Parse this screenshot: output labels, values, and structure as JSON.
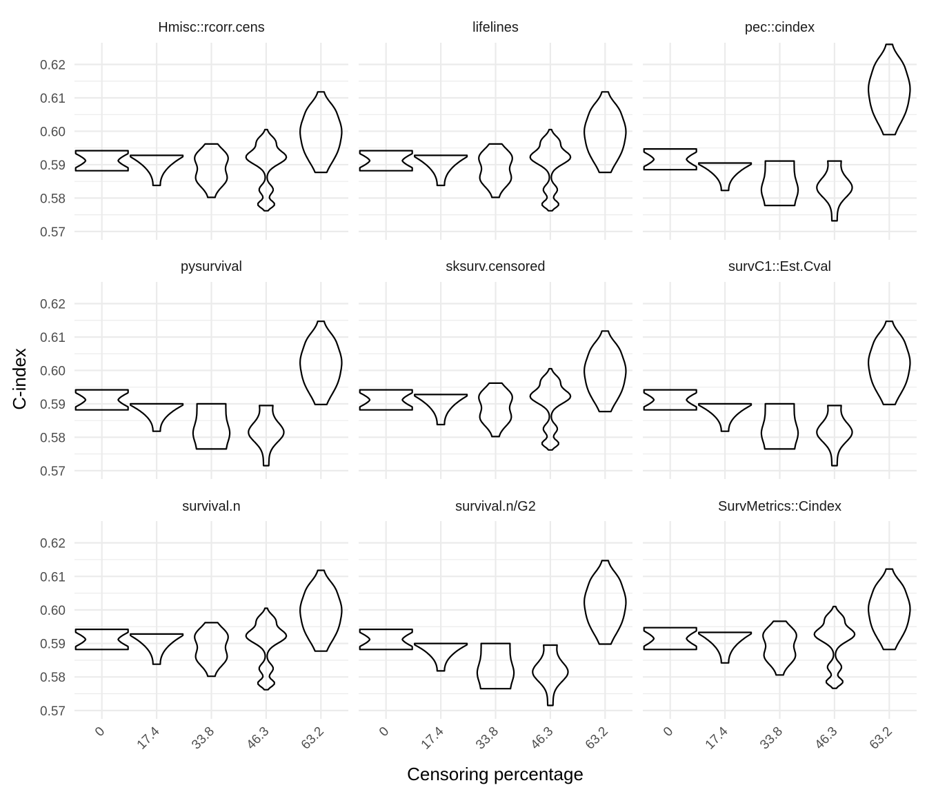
{
  "chart_data": {
    "type": "violin",
    "xlabel": "Censoring percentage",
    "ylabel": "C-index",
    "categories": [
      "0",
      "17.4",
      "33.8",
      "46.3",
      "63.2"
    ],
    "y_ticks": [
      "0.57",
      "0.58",
      "0.59",
      "0.60",
      "0.61",
      "0.62"
    ],
    "ylim": [
      0.5675,
      0.6265
    ],
    "grid": true,
    "facets": [
      {
        "title": "Hmisc::rcorr.cens",
        "violins": [
          {
            "range": [
              0.5882,
              0.5942
            ],
            "profile": "bowtie"
          },
          {
            "range": [
              0.5838,
              0.5928
            ],
            "profile": "funnel"
          },
          {
            "range": [
              0.5802,
              0.5962
            ],
            "profile": "pear"
          },
          {
            "range": [
              0.5762,
              0.6005
            ],
            "profile": "multimodal"
          },
          {
            "range": [
              0.5877,
              0.6118
            ],
            "profile": "spindle"
          }
        ]
      },
      {
        "title": "lifelines",
        "violins": [
          {
            "range": [
              0.5882,
              0.5942
            ],
            "profile": "bowtie"
          },
          {
            "range": [
              0.5838,
              0.5928
            ],
            "profile": "funnel"
          },
          {
            "range": [
              0.5802,
              0.5962
            ],
            "profile": "pear"
          },
          {
            "range": [
              0.5762,
              0.6005
            ],
            "profile": "multimodal"
          },
          {
            "range": [
              0.5877,
              0.6118
            ],
            "profile": "spindle"
          }
        ]
      },
      {
        "title": "pec::cindex",
        "violins": [
          {
            "range": [
              0.5885,
              0.5947
            ],
            "profile": "bowtie"
          },
          {
            "range": [
              0.5823,
              0.5905
            ],
            "profile": "funnel"
          },
          {
            "range": [
              0.5778,
              0.5911
            ],
            "profile": "column"
          },
          {
            "range": [
              0.5732,
              0.5911
            ],
            "profile": "drop"
          },
          {
            "range": [
              0.599,
              0.626
            ],
            "profile": "spindle"
          }
        ]
      },
      {
        "title": "pysurvival",
        "violins": [
          {
            "range": [
              0.5882,
              0.5942
            ],
            "profile": "bowtie"
          },
          {
            "range": [
              0.5818,
              0.59
            ],
            "profile": "funnel"
          },
          {
            "range": [
              0.5765,
              0.59
            ],
            "profile": "column"
          },
          {
            "range": [
              0.5715,
              0.5895
            ],
            "profile": "drop"
          },
          {
            "range": [
              0.5898,
              0.6147
            ],
            "profile": "spindle"
          }
        ]
      },
      {
        "title": "sksurv.censored",
        "violins": [
          {
            "range": [
              0.5882,
              0.5942
            ],
            "profile": "bowtie"
          },
          {
            "range": [
              0.5838,
              0.5928
            ],
            "profile": "funnel"
          },
          {
            "range": [
              0.5802,
              0.5962
            ],
            "profile": "pear"
          },
          {
            "range": [
              0.5762,
              0.6005
            ],
            "profile": "multimodal"
          },
          {
            "range": [
              0.5877,
              0.6118
            ],
            "profile": "spindle"
          }
        ]
      },
      {
        "title": "survC1::Est.Cval",
        "violins": [
          {
            "range": [
              0.5882,
              0.5942
            ],
            "profile": "bowtie"
          },
          {
            "range": [
              0.5818,
              0.59
            ],
            "profile": "funnel"
          },
          {
            "range": [
              0.5765,
              0.59
            ],
            "profile": "column"
          },
          {
            "range": [
              0.5715,
              0.5895
            ],
            "profile": "drop"
          },
          {
            "range": [
              0.5898,
              0.6147
            ],
            "profile": "spindle"
          }
        ]
      },
      {
        "title": "survival.n",
        "violins": [
          {
            "range": [
              0.5882,
              0.5942
            ],
            "profile": "bowtie"
          },
          {
            "range": [
              0.5838,
              0.5928
            ],
            "profile": "funnel"
          },
          {
            "range": [
              0.5802,
              0.5962
            ],
            "profile": "pear"
          },
          {
            "range": [
              0.5762,
              0.6005
            ],
            "profile": "multimodal"
          },
          {
            "range": [
              0.5877,
              0.6118
            ],
            "profile": "spindle"
          }
        ]
      },
      {
        "title": "survival.n/G2",
        "violins": [
          {
            "range": [
              0.5882,
              0.5942
            ],
            "profile": "bowtie"
          },
          {
            "range": [
              0.5818,
              0.59
            ],
            "profile": "funnel"
          },
          {
            "range": [
              0.5765,
              0.59
            ],
            "profile": "column"
          },
          {
            "range": [
              0.5715,
              0.5895
            ],
            "profile": "drop"
          },
          {
            "range": [
              0.5898,
              0.6147
            ],
            "profile": "spindle"
          }
        ]
      },
      {
        "title": "SurvMetrics::Cindex",
        "violins": [
          {
            "range": [
              0.5882,
              0.5947
            ],
            "profile": "bowtie"
          },
          {
            "range": [
              0.5842,
              0.5933
            ],
            "profile": "funnel"
          },
          {
            "range": [
              0.5806,
              0.5966
            ],
            "profile": "pear"
          },
          {
            "range": [
              0.5766,
              0.601
            ],
            "profile": "multimodal"
          },
          {
            "range": [
              0.5882,
              0.6122
            ],
            "profile": "spindle"
          }
        ]
      }
    ]
  }
}
